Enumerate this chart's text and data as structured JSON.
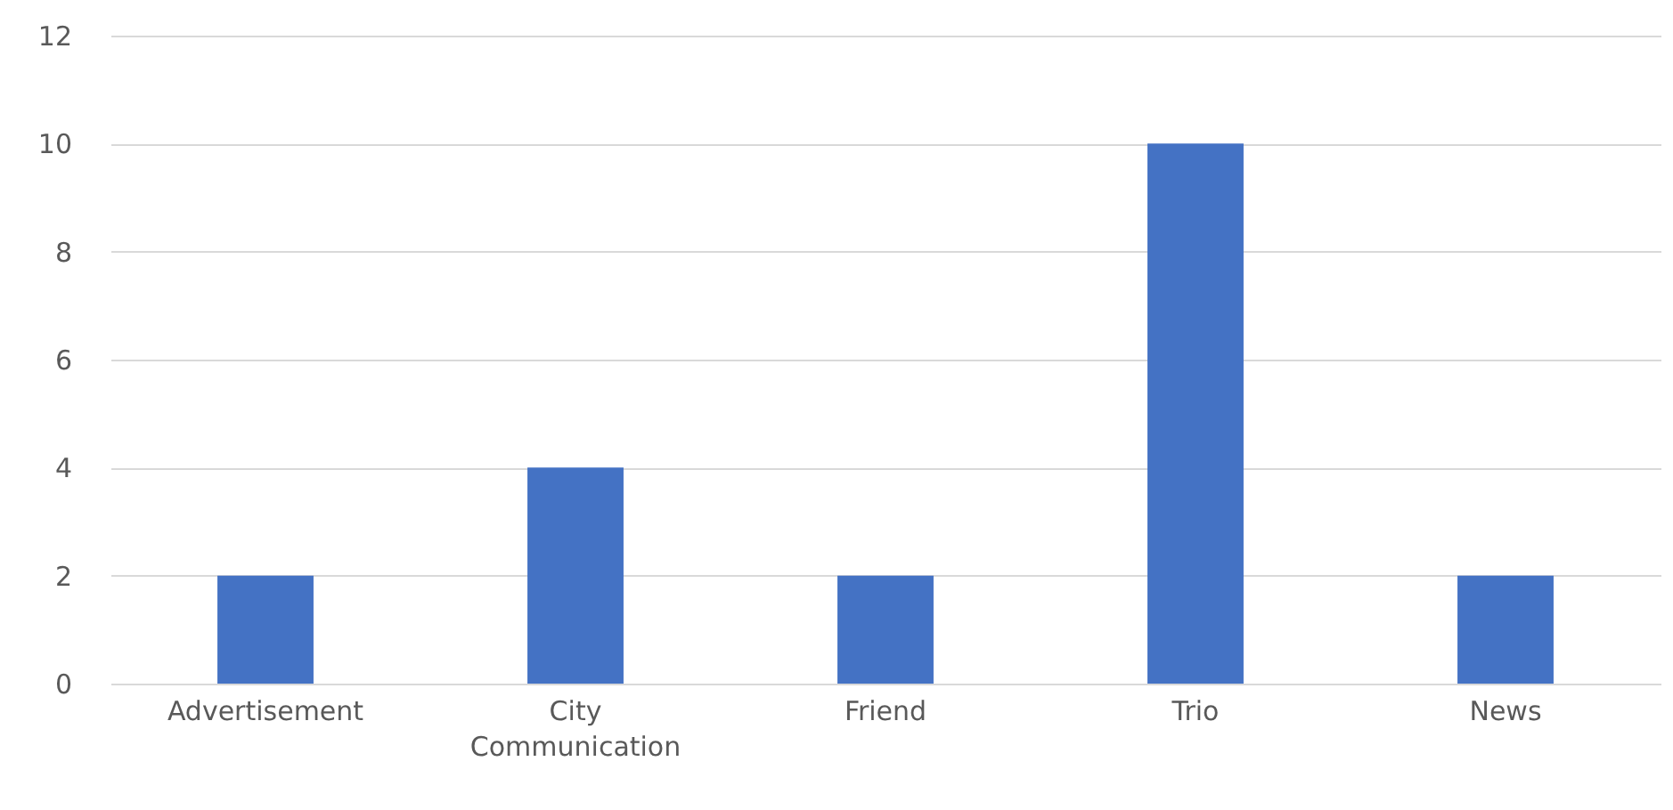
{
  "chart_data": {
    "type": "bar",
    "categories": [
      "Advertisement",
      "City Communication",
      "Friend",
      "Trio",
      "News"
    ],
    "values": [
      2,
      4,
      2,
      10,
      2
    ],
    "color": "#4472c4",
    "ylim": [
      0,
      12
    ],
    "yticks": [
      0,
      2,
      4,
      6,
      8,
      10,
      12
    ],
    "grid": "y"
  }
}
